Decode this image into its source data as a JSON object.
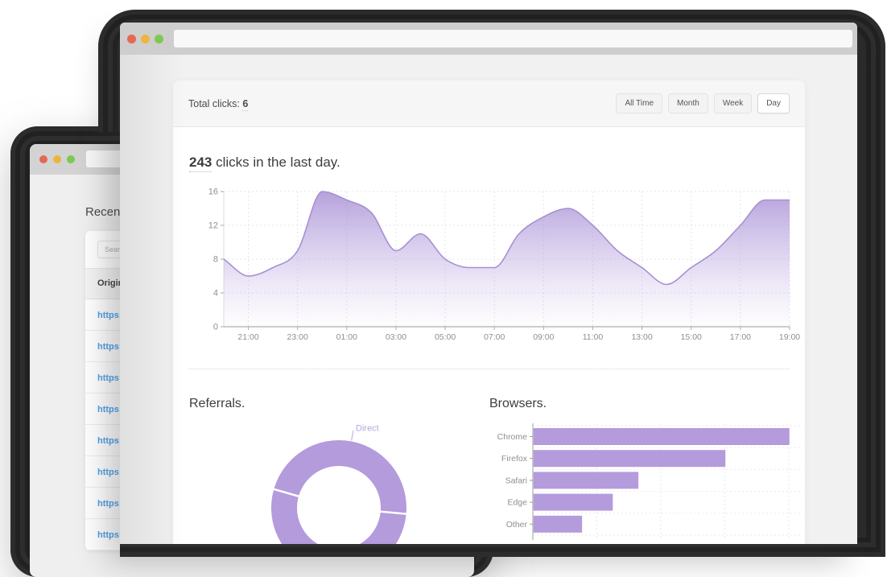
{
  "back_window": {
    "heading": "Recent",
    "search_placeholder": "Search",
    "table": {
      "header": "Original",
      "rows": [
        "https://",
        "https://",
        "https://",
        "https://",
        "https://",
        "https://",
        "https://",
        "https://"
      ]
    }
  },
  "front_window": {
    "url_value": "",
    "panel": {
      "total_clicks_label": "Total clicks:",
      "total_clicks_value": "6",
      "filters": [
        {
          "label": "All Time",
          "active": false
        },
        {
          "label": "Month",
          "active": false
        },
        {
          "label": "Week",
          "active": false
        },
        {
          "label": "Day",
          "active": true
        }
      ],
      "headline_count": "243",
      "headline_text": " clicks in the last day.",
      "referrals_title": "Referrals.",
      "browsers_title": "Browsers."
    }
  },
  "colors": {
    "purple": "#b49bdc",
    "purple_stroke": "#a78fd3",
    "purple_label": "#b8a5e2",
    "link_blue": "#4ba2e9",
    "axis_text": "#8f8f8f",
    "grid": "#e5e3ea"
  },
  "chart_data": [
    {
      "type": "area",
      "title": "243 clicks in the last day.",
      "x": [
        "20:00",
        "21:00",
        "22:00",
        "23:00",
        "00:00",
        "01:00",
        "02:00",
        "03:00",
        "04:00",
        "05:00",
        "06:00",
        "07:00",
        "08:00",
        "09:00",
        "10:00",
        "11:00",
        "12:00",
        "13:00",
        "14:00",
        "15:00",
        "16:00",
        "17:00",
        "18:00",
        "19:00"
      ],
      "values": [
        8,
        6,
        7,
        9,
        16,
        15,
        13.5,
        9,
        11,
        8,
        7,
        7,
        11,
        13,
        14,
        12,
        9,
        7,
        5,
        7,
        9,
        12,
        15,
        15
      ],
      "xticks": [
        "21:00",
        "23:00",
        "01:00",
        "03:00",
        "05:00",
        "07:00",
        "09:00",
        "11:00",
        "13:00",
        "15:00",
        "17:00",
        "19:00"
      ],
      "ylabel": "",
      "xlabel": "",
      "yticks": [
        0,
        4,
        8,
        12,
        16
      ],
      "ylim": [
        0,
        16
      ],
      "grid": true,
      "legend": false
    },
    {
      "type": "pie",
      "title": "Referrals.",
      "donut": true,
      "start_angle_deg_from_north": 286,
      "segments": [
        {
          "label": "Direct",
          "value": 47,
          "label_visible": true
        },
        {
          "label": "",
          "value": 27,
          "label_visible": false
        },
        {
          "label": "",
          "value": 26,
          "label_visible": false
        }
      ],
      "note": "single purple hue, thin white slice separators, bottom of donut cut off by viewport"
    },
    {
      "type": "bar",
      "title": "Browsers.",
      "orientation": "horizontal",
      "categories": [
        "Chrome",
        "Firefox",
        "Safari",
        "Edge",
        "Other"
      ],
      "values": [
        100,
        75,
        41,
        31,
        19
      ],
      "xlim": [
        0,
        105
      ],
      "gridlines_x": [
        25,
        50,
        75,
        100
      ],
      "grid": true,
      "legend": false
    }
  ]
}
